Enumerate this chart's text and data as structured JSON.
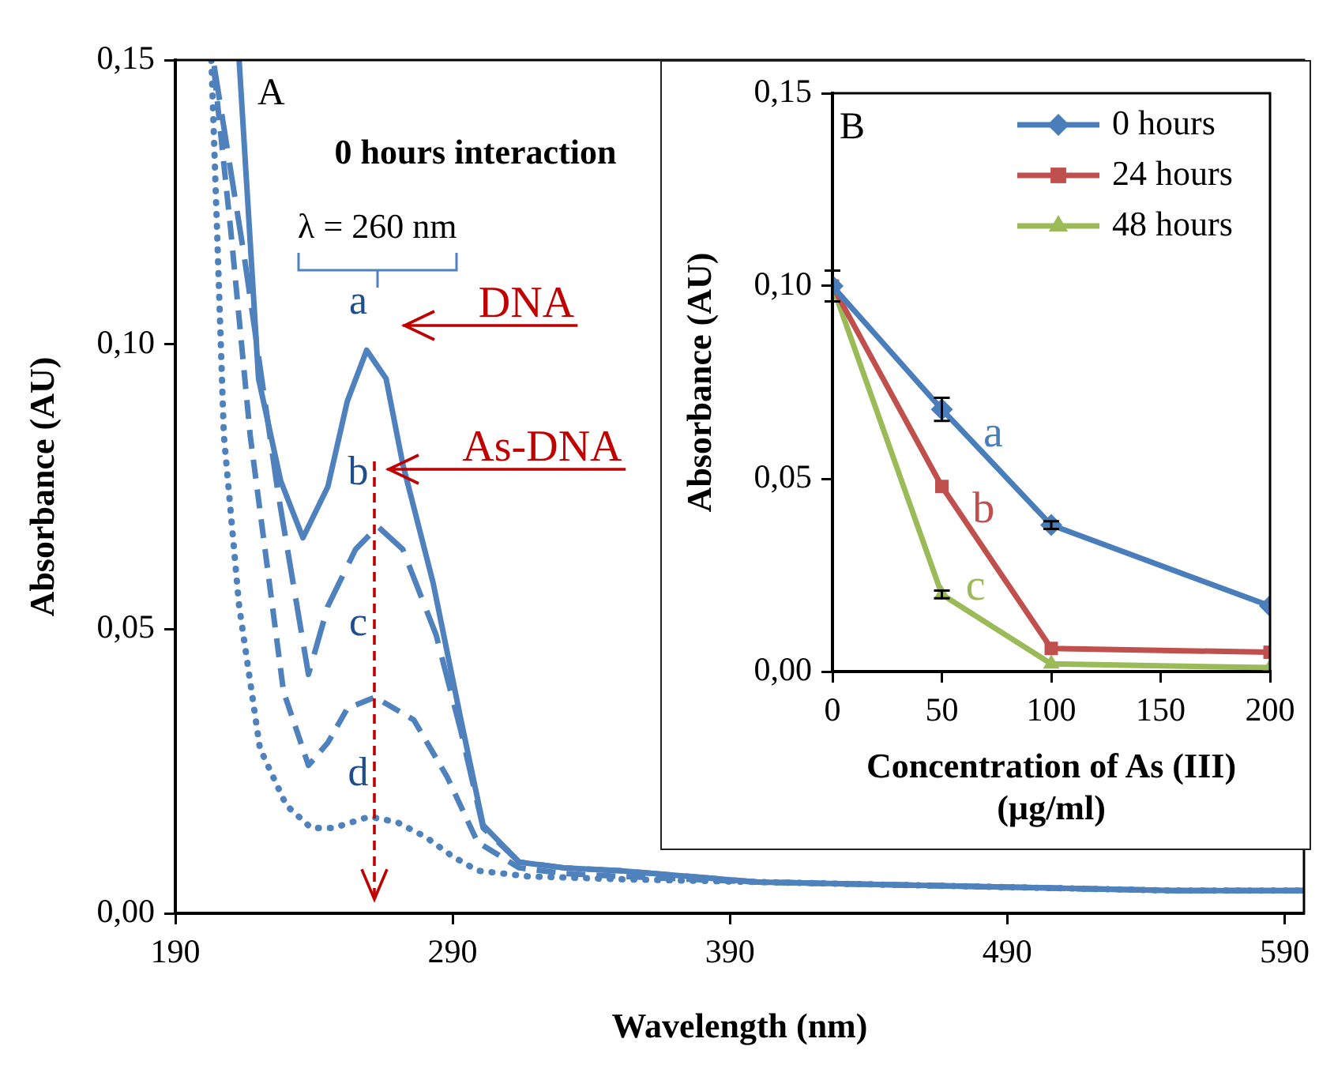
{
  "chart_data": [
    {
      "type": "line",
      "title": "0 hours interaction",
      "xlabel": "Wavelength (nm)",
      "ylabel": "Absorbance (AU)",
      "annotations": [
        "A",
        "a",
        "b",
        "c",
        "d",
        "DNA",
        "As-DNA",
        "λ = 260 nm"
      ],
      "xlim": [
        190,
        597
      ],
      "xticks": [
        190,
        290,
        390,
        490,
        590
      ],
      "ylim": [
        0,
        0.15
      ],
      "yticks": [
        {
          "value": 0,
          "label": "0,00"
        },
        {
          "value": 0.05,
          "label": "0,05"
        },
        {
          "value": 0.1,
          "label": "0,10"
        },
        {
          "value": 0.15,
          "label": "0,15"
        }
      ],
      "grid": false,
      "legend": false,
      "marker": "none",
      "series": [
        {
          "color": "#4f81bd",
          "line_style": "solid",
          "x": [
            213,
            220,
            228,
            236,
            245,
            252,
            259,
            266,
            272,
            283,
            293,
            301,
            314,
            330,
            350,
            400,
            450,
            500,
            550,
            597
          ],
          "values": [
            0.15,
            0.094,
            0.076,
            0.066,
            0.075,
            0.09,
            0.099,
            0.094,
            0.079,
            0.058,
            0.034,
            0.0155,
            0.009,
            0.008,
            0.0075,
            0.0055,
            0.005,
            0.0045,
            0.004,
            0.004
          ]
        },
        {
          "color": "#4f81bd",
          "line_style": "dashed",
          "x": [
            204,
            215,
            227,
            238,
            245,
            255,
            263,
            272,
            284,
            293,
            301,
            314,
            330,
            350,
            400,
            450,
            500,
            550,
            597
          ],
          "values": [
            0.149,
            0.115,
            0.074,
            0.042,
            0.054,
            0.064,
            0.068,
            0.064,
            0.049,
            0.032,
            0.015,
            0.009,
            0.008,
            0.0075,
            0.0055,
            0.005,
            0.0045,
            0.004,
            0.004
          ]
        },
        {
          "color": "#4f81bd",
          "line_style": "dashed",
          "x": [
            204,
            210,
            217,
            229,
            238,
            245,
            252,
            262,
            276,
            288,
            299,
            314,
            330,
            350,
            400,
            450,
            500,
            550,
            597
          ],
          "values": [
            0.148,
            0.12,
            0.084,
            0.039,
            0.026,
            0.03,
            0.036,
            0.038,
            0.034,
            0.024,
            0.0125,
            0.008,
            0.007,
            0.0065,
            0.0055,
            0.005,
            0.0045,
            0.004,
            0.004
          ]
        },
        {
          "color": "#4f81bd",
          "line_style": "dotted",
          "x": [
            203,
            207.5,
            213,
            220.5,
            230,
            239,
            247,
            260,
            270,
            280,
            290,
            299,
            317,
            350,
            400,
            450,
            500,
            550,
            597
          ],
          "values": [
            0.15,
            0.084,
            0.054,
            0.029,
            0.019,
            0.015,
            0.015,
            0.017,
            0.016,
            0.0135,
            0.01,
            0.0075,
            0.0065,
            0.006,
            0.0055,
            0.005,
            0.0045,
            0.004,
            0.004
          ]
        }
      ]
    },
    {
      "type": "line",
      "xlabel": "Concentration of As (III)\n(µg/ml)",
      "ylabel": "Absorbance (AU)",
      "annotations": [
        "B",
        "a",
        "b",
        "c"
      ],
      "x": [
        0,
        50,
        100,
        200
      ],
      "xlim": [
        0,
        200
      ],
      "xticks": [
        0,
        50,
        100,
        150,
        200
      ],
      "ylim": [
        0,
        0.15
      ],
      "yticks": [
        {
          "value": 0,
          "label": "0,00"
        },
        {
          "value": 0.05,
          "label": "0,05"
        },
        {
          "value": 0.1,
          "label": "0,10"
        },
        {
          "value": 0.15,
          "label": "0,15"
        }
      ],
      "grid": false,
      "legend": "top right",
      "series": [
        {
          "name": "0 hours",
          "color": "#4a7ebb",
          "marker": "diamond",
          "values": [
            0.1,
            0.068,
            0.038,
            0.017
          ],
          "errors": [
            0.004,
            0.003,
            0.001,
            null
          ]
        },
        {
          "name": "24 hours",
          "color": "#c0504d",
          "marker": "square",
          "values": [
            0.1,
            0.048,
            0.006,
            0.005
          ]
        },
        {
          "name": "48 hours",
          "color": "#9bbb59",
          "marker": "triangle",
          "values": [
            0.1,
            0.02,
            0.002,
            0.001
          ],
          "errors": [
            null,
            0.001,
            null,
            null
          ]
        }
      ]
    }
  ]
}
